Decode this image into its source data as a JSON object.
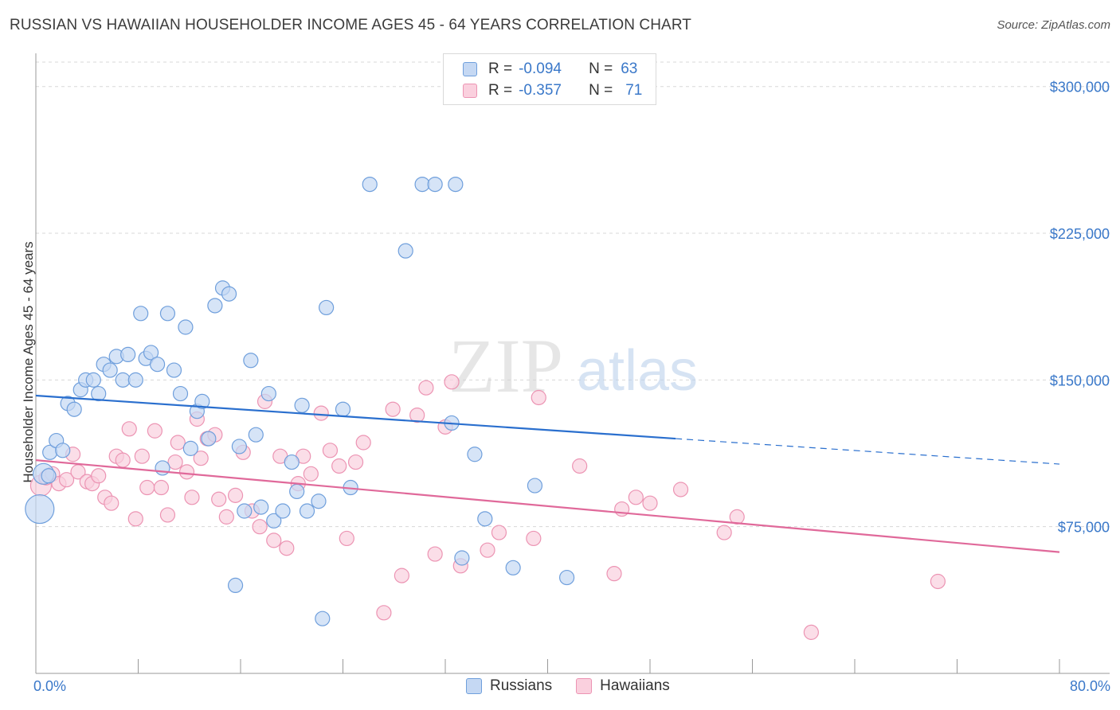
{
  "title": "RUSSIAN VS HAWAIIAN HOUSEHOLDER INCOME AGES 45 - 64 YEARS CORRELATION CHART",
  "source": "Source: ZipAtlas.com",
  "watermark": {
    "zip": "ZIP",
    "atlas": "atlas"
  },
  "legend": {
    "russians": {
      "r_label": "R =",
      "r_value": "-0.094",
      "n_label": "N =",
      "n_value": "63"
    },
    "hawaiians": {
      "r_label": "R =",
      "r_value": "-0.357",
      "n_label": "N =",
      "n_value": "71"
    }
  },
  "bottom_legend": {
    "russians": "Russians",
    "hawaiians": "Hawaiians"
  },
  "colors": {
    "russians_fill": "#c5d8f3",
    "russians_stroke": "#6f9fdc",
    "russians_line": "#2a6fce",
    "hawaiians_fill": "#fad0de",
    "hawaiians_stroke": "#ec94b3",
    "hawaiians_line": "#e0699a",
    "tick_label": "#3a78c9",
    "grid": "#d8d8d8"
  },
  "chart_data": {
    "type": "scatter",
    "xlabel": "",
    "ylabel": "Householder Income Ages 45 - 64 years",
    "xlim": [
      0,
      80
    ],
    "ylim": [
      0,
      312500
    ],
    "x_tick_labels": [
      "0.0%",
      "80.0%"
    ],
    "y_ticks": [
      75000,
      150000,
      225000,
      300000
    ],
    "y_tick_labels": [
      "$75,000",
      "$150,000",
      "$225,000",
      "$300,000"
    ],
    "grid": "horizontal dashed",
    "legend_position": "top-center",
    "series": [
      {
        "name": "Russians",
        "r": -0.094,
        "n": 63,
        "trend": {
          "x0": 0,
          "y0": 142000,
          "x1": 50,
          "y1": 120000,
          "dashed_to_x": 80,
          "dashed_to_y": 107000
        },
        "points": [
          [
            0.3,
            84000,
            "large"
          ],
          [
            0.6,
            102000,
            "big"
          ],
          [
            1.0,
            101000
          ],
          [
            1.1,
            113000
          ],
          [
            1.6,
            119000
          ],
          [
            2.1,
            114000
          ],
          [
            2.5,
            138000
          ],
          [
            3.0,
            135000
          ],
          [
            3.5,
            145000
          ],
          [
            3.9,
            150000
          ],
          [
            4.5,
            150000
          ],
          [
            4.9,
            143000
          ],
          [
            5.3,
            158000
          ],
          [
            5.8,
            155000
          ],
          [
            6.3,
            162000
          ],
          [
            6.8,
            150000
          ],
          [
            7.2,
            163000
          ],
          [
            7.8,
            150000
          ],
          [
            8.2,
            184000
          ],
          [
            8.6,
            161000
          ],
          [
            9.0,
            164000
          ],
          [
            9.5,
            158000
          ],
          [
            9.9,
            105000
          ],
          [
            10.3,
            184000
          ],
          [
            10.8,
            155000
          ],
          [
            11.3,
            143000
          ],
          [
            11.7,
            177000
          ],
          [
            12.1,
            115000
          ],
          [
            12.6,
            134000
          ],
          [
            13.0,
            139000
          ],
          [
            13.5,
            120000
          ],
          [
            14.0,
            188000
          ],
          [
            14.6,
            197000
          ],
          [
            15.1,
            194000
          ],
          [
            15.6,
            45000
          ],
          [
            15.9,
            116000
          ],
          [
            16.3,
            83000
          ],
          [
            16.8,
            160000
          ],
          [
            17.2,
            122000
          ],
          [
            17.6,
            85000
          ],
          [
            18.2,
            143000
          ],
          [
            18.6,
            78000
          ],
          [
            19.3,
            83000
          ],
          [
            20.0,
            108000
          ],
          [
            20.4,
            93000
          ],
          [
            20.8,
            137000
          ],
          [
            21.2,
            83000
          ],
          [
            22.1,
            88000
          ],
          [
            22.4,
            28000
          ],
          [
            22.7,
            187000
          ],
          [
            24.0,
            135000
          ],
          [
            24.6,
            95000
          ],
          [
            26.1,
            250000
          ],
          [
            28.9,
            216000
          ],
          [
            30.2,
            250000
          ],
          [
            31.2,
            250000
          ],
          [
            32.5,
            128000
          ],
          [
            32.8,
            250000
          ],
          [
            33.3,
            59000
          ],
          [
            34.3,
            112000
          ],
          [
            35.1,
            79000
          ],
          [
            37.3,
            54000
          ],
          [
            39.0,
            96000
          ],
          [
            41.5,
            49000
          ]
        ]
      },
      {
        "name": "Hawaiians",
        "r": -0.357,
        "n": 71,
        "trend": {
          "x0": 0,
          "y0": 109000,
          "x1": 80,
          "y1": 62000
        },
        "points": [
          [
            0.4,
            96000,
            "big"
          ],
          [
            0.8,
            100000
          ],
          [
            1.3,
            102000
          ],
          [
            1.8,
            97000
          ],
          [
            2.4,
            99000
          ],
          [
            2.9,
            112000
          ],
          [
            3.3,
            103000
          ],
          [
            4.0,
            98000
          ],
          [
            4.4,
            97000
          ],
          [
            4.9,
            101000
          ],
          [
            5.4,
            90000
          ],
          [
            5.9,
            87000
          ],
          [
            6.3,
            111000
          ],
          [
            6.8,
            109000
          ],
          [
            7.3,
            125000
          ],
          [
            7.8,
            79000
          ],
          [
            8.3,
            111000
          ],
          [
            8.7,
            95000
          ],
          [
            9.3,
            124000
          ],
          [
            9.8,
            95000
          ],
          [
            10.3,
            81000
          ],
          [
            10.9,
            108000
          ],
          [
            11.1,
            118000
          ],
          [
            11.8,
            103000
          ],
          [
            12.2,
            90000
          ],
          [
            12.6,
            130000
          ],
          [
            12.9,
            110000
          ],
          [
            13.4,
            120000
          ],
          [
            14.0,
            122000
          ],
          [
            14.3,
            89000
          ],
          [
            14.9,
            80000
          ],
          [
            15.6,
            91000
          ],
          [
            16.2,
            113000
          ],
          [
            16.9,
            83000
          ],
          [
            17.5,
            75000
          ],
          [
            17.9,
            139000
          ],
          [
            18.6,
            68000
          ],
          [
            19.1,
            111000
          ],
          [
            19.6,
            64000
          ],
          [
            20.5,
            97000
          ],
          [
            20.9,
            111000
          ],
          [
            21.5,
            102000
          ],
          [
            22.3,
            133000
          ],
          [
            23.0,
            114000
          ],
          [
            23.7,
            106000
          ],
          [
            24.3,
            69000
          ],
          [
            25.0,
            108000
          ],
          [
            25.6,
            118000
          ],
          [
            27.2,
            31000
          ],
          [
            27.9,
            135000
          ],
          [
            28.6,
            50000
          ],
          [
            29.8,
            132000
          ],
          [
            30.5,
            146000
          ],
          [
            31.2,
            61000
          ],
          [
            32.0,
            126000
          ],
          [
            32.5,
            149000
          ],
          [
            33.2,
            55000
          ],
          [
            35.3,
            63000
          ],
          [
            36.2,
            72000
          ],
          [
            38.9,
            69000
          ],
          [
            39.3,
            141000
          ],
          [
            42.5,
            106000
          ],
          [
            45.2,
            51000
          ],
          [
            45.8,
            84000
          ],
          [
            46.9,
            90000
          ],
          [
            48.0,
            87000
          ],
          [
            50.4,
            94000
          ],
          [
            53.8,
            72000
          ],
          [
            54.8,
            80000
          ],
          [
            60.6,
            21000
          ],
          [
            70.5,
            47000
          ]
        ]
      }
    ]
  }
}
